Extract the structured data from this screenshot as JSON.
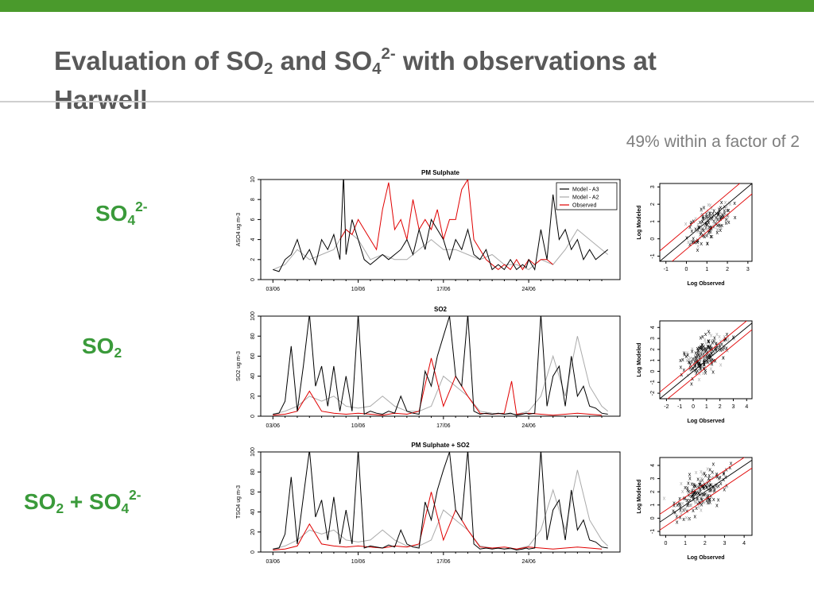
{
  "slide": {
    "title_prefix": "Evaluation of SO",
    "title_sub1": "2",
    "title_mid": " and SO",
    "title_sub2": "4",
    "title_sup": "2-",
    "title_suffix": " with observations at",
    "title_line2": "Harwell",
    "subtitle": "49% within a factor of 2",
    "row_labels": {
      "r1": {
        "base": "SO",
        "sub": "4",
        "sup": "2-"
      },
      "r2": {
        "base": "SO",
        "sub": "2"
      },
      "r3": {
        "base1": "SO",
        "sub1": "2",
        "plus": " + SO",
        "sub2": "4",
        "sup": "2-"
      }
    },
    "colors": {
      "accent_bar": "#4a9a2c",
      "label_green": "#3a9a3a",
      "model_a3": "#000000",
      "model_a2": "#aaaaaa",
      "observed": "#e00000"
    }
  },
  "chart_data": [
    {
      "type": "line",
      "title": "PM Sulphate",
      "ylabel": "ASO4 ug m-3",
      "xlabel": "",
      "ylim": [
        0,
        10
      ],
      "yticks": [
        0,
        2,
        4,
        6,
        8,
        10
      ],
      "x_tick_labels": [
        "03/06",
        "10/06",
        "17/06",
        "24/06"
      ],
      "x_tick_days": [
        0,
        7,
        14,
        21
      ],
      "x_range_days": [
        -1,
        28.5
      ],
      "legend": {
        "position": "top-right",
        "entries": [
          "Model - A3",
          "Model - A2",
          "Observed"
        ]
      },
      "series": [
        {
          "name": "Model - A3",
          "color": "#000000",
          "x": [
            0,
            0.5,
            1,
            1.5,
            2,
            2.5,
            3,
            3.5,
            4,
            4.5,
            5,
            5.5,
            5.8,
            6,
            6.5,
            7,
            7.5,
            8,
            8.5,
            9,
            9.5,
            10,
            10.5,
            11,
            11.5,
            12,
            12.5,
            13,
            13.5,
            14,
            14.5,
            15,
            15.5,
            16,
            16.5,
            17,
            17.5,
            18,
            18.5,
            19,
            19.5,
            20,
            20.5,
            20.8,
            21,
            21.5,
            22,
            22.5,
            23,
            23.5,
            24,
            24.5,
            25,
            25.5,
            26,
            26.5,
            27,
            27.5
          ],
          "y": [
            1,
            0.8,
            2,
            2.5,
            4,
            2,
            3,
            1.5,
            4,
            3,
            4.5,
            2,
            10.5,
            2.5,
            6,
            4,
            2,
            1.5,
            2,
            2.5,
            2,
            2.5,
            3,
            4,
            2.5,
            5,
            3,
            6,
            5,
            4,
            2,
            4,
            3,
            5,
            2.5,
            2,
            3,
            1,
            1.5,
            1,
            2,
            1,
            1.5,
            1.2,
            2,
            1,
            5,
            2,
            8.5,
            4,
            5,
            3,
            4,
            2,
            3,
            2,
            2.5,
            3
          ]
        },
        {
          "name": "Model - A2",
          "color": "#aaaaaa",
          "x": [
            0,
            1,
            2,
            3,
            4,
            5,
            6,
            7,
            8,
            9,
            10,
            11,
            12,
            13,
            14,
            15,
            16,
            17,
            18,
            19,
            20,
            21,
            22,
            23,
            24,
            25,
            26,
            27,
            27.5
          ],
          "y": [
            1,
            1.5,
            3,
            2,
            2.5,
            3,
            5,
            4,
            2,
            2.5,
            2,
            2,
            3,
            4,
            3,
            3,
            2.5,
            2,
            2.5,
            1.5,
            1.5,
            1,
            2,
            1.5,
            3,
            5,
            4,
            3,
            2.5
          ]
        },
        {
          "name": "Observed",
          "color": "#e00000",
          "x": [
            5.5,
            6,
            6.5,
            7,
            7.5,
            8,
            8.5,
            9,
            9.5,
            10,
            10.5,
            11,
            11.5,
            12,
            12.5,
            13,
            13.5,
            14,
            14.5,
            15,
            15.5,
            16,
            16.5,
            17.5,
            18,
            18.5,
            19,
            19.5,
            20,
            20.5,
            21,
            21.5,
            22,
            22.5,
            23
          ],
          "y": [
            4,
            5,
            4.5,
            6,
            5,
            4,
            3,
            7,
            9.7,
            5,
            6,
            4,
            8,
            5,
            6,
            5,
            7,
            4,
            6,
            6,
            9,
            10,
            4,
            2,
            1.5,
            1,
            1.5,
            1,
            2,
            1,
            2,
            1.5,
            2,
            2,
            1.5
          ]
        }
      ]
    },
    {
      "type": "line",
      "title": "SO2",
      "ylabel": "SO2 ug m-3",
      "xlabel": "",
      "ylim": [
        0,
        100
      ],
      "yticks": [
        0,
        20,
        40,
        60,
        80,
        100
      ],
      "x_tick_labels": [
        "03/06",
        "10/06",
        "17/06",
        "24/06"
      ],
      "x_tick_days": [
        0,
        7,
        14,
        21
      ],
      "x_range_days": [
        -1,
        28.5
      ],
      "series": [
        {
          "name": "Model - A3",
          "color": "#000000",
          "x": [
            0,
            0.5,
            1,
            1.5,
            2,
            2.5,
            3,
            3.5,
            4,
            4.5,
            5,
            5.5,
            6,
            6.5,
            7,
            7.5,
            8,
            8.5,
            9,
            9.5,
            10,
            10.5,
            11,
            11.5,
            12,
            12.5,
            13,
            13.5,
            14,
            14.5,
            15,
            15.5,
            16,
            16.5,
            17,
            17.5,
            18,
            18.5,
            19,
            19.5,
            20,
            20.5,
            20.8,
            21,
            21.5,
            22,
            22.5,
            23,
            23.5,
            24,
            24.5,
            25,
            25.5,
            26,
            26.5,
            27,
            27.5
          ],
          "y": [
            2,
            3,
            15,
            70,
            5,
            50,
            102,
            30,
            50,
            10,
            50,
            5,
            40,
            5,
            102,
            2,
            5,
            3,
            2,
            5,
            3,
            20,
            5,
            3,
            2,
            45,
            30,
            60,
            80,
            100,
            40,
            30,
            102,
            5,
            2,
            3,
            2,
            3,
            2,
            3,
            1,
            2,
            3,
            2,
            3,
            102,
            10,
            40,
            50,
            10,
            60,
            20,
            30,
            10,
            8,
            3,
            2
          ]
        },
        {
          "name": "Model - A2",
          "color": "#aaaaaa",
          "x": [
            0,
            1,
            2,
            3,
            4,
            5,
            6,
            7,
            8,
            9,
            10,
            11,
            12,
            13,
            14,
            15,
            16,
            17,
            18,
            19,
            20,
            21,
            22,
            23,
            24,
            25,
            26,
            27,
            27.5
          ],
          "y": [
            2,
            5,
            10,
            20,
            15,
            20,
            10,
            8,
            10,
            20,
            10,
            5,
            5,
            10,
            40,
            30,
            20,
            5,
            3,
            2,
            2,
            5,
            20,
            60,
            20,
            80,
            30,
            10,
            5
          ]
        },
        {
          "name": "Observed",
          "color": "#e00000",
          "x": [
            0,
            1,
            2,
            3,
            4,
            5,
            6,
            7,
            8,
            9,
            10,
            11,
            12,
            13,
            14,
            15,
            16,
            17,
            18,
            19,
            19.6,
            20,
            21,
            22,
            23,
            24,
            25,
            26,
            27
          ],
          "y": [
            1,
            2,
            5,
            25,
            5,
            3,
            2,
            3,
            2,
            1,
            3,
            2,
            5,
            58,
            10,
            40,
            20,
            3,
            2,
            3,
            35,
            2,
            3,
            2,
            1,
            2,
            3,
            2,
            1
          ]
        }
      ]
    },
    {
      "type": "line",
      "title": "PM Sulphate + SO2",
      "ylabel": "TSO4 ug m-3",
      "xlabel": "",
      "ylim": [
        0,
        100
      ],
      "yticks": [
        0,
        20,
        40,
        60,
        80,
        100
      ],
      "x_tick_labels": [
        "03/06",
        "10/06",
        "17/06",
        "24/06"
      ],
      "x_tick_days": [
        0,
        7,
        14,
        21
      ],
      "x_range_days": [
        -1,
        28.5
      ],
      "series": [
        {
          "name": "Model - A3",
          "color": "#000000",
          "x": [
            0,
            0.5,
            1,
            1.5,
            2,
            2.5,
            3,
            3.5,
            4,
            4.5,
            5,
            5.5,
            6,
            6.5,
            7,
            7.5,
            8,
            8.5,
            9,
            9.5,
            10,
            10.5,
            11,
            11.5,
            12,
            12.5,
            13,
            13.5,
            14,
            14.5,
            15,
            15.5,
            16,
            16.5,
            17,
            17.5,
            18,
            18.5,
            19,
            19.5,
            20,
            20.5,
            20.8,
            21,
            21.5,
            22,
            22.5,
            23,
            23.5,
            24,
            24.5,
            25,
            25.5,
            26,
            26.5,
            27,
            27.5
          ],
          "y": [
            3,
            4,
            18,
            75,
            8,
            55,
            102,
            35,
            52,
            12,
            55,
            8,
            42,
            8,
            102,
            4,
            6,
            5,
            4,
            7,
            5,
            22,
            8,
            5,
            4,
            50,
            32,
            62,
            82,
            100,
            42,
            32,
            102,
            8,
            3,
            4,
            3,
            4,
            3,
            4,
            2,
            3,
            4,
            3,
            4,
            102,
            12,
            42,
            52,
            12,
            62,
            22,
            32,
            12,
            10,
            5,
            4
          ]
        },
        {
          "name": "Model - A2",
          "color": "#aaaaaa",
          "x": [
            0,
            1,
            2,
            3,
            4,
            5,
            6,
            7,
            8,
            9,
            10,
            11,
            12,
            13,
            14,
            15,
            16,
            17,
            18,
            19,
            20,
            21,
            22,
            23,
            24,
            25,
            26,
            27,
            27.5
          ],
          "y": [
            3,
            6,
            12,
            22,
            18,
            22,
            12,
            10,
            12,
            22,
            12,
            6,
            6,
            12,
            42,
            32,
            22,
            6,
            4,
            3,
            3,
            6,
            22,
            62,
            22,
            82,
            32,
            12,
            6
          ]
        },
        {
          "name": "Observed",
          "color": "#e00000",
          "x": [
            0,
            1,
            2,
            3,
            4,
            5,
            6,
            7,
            8,
            9,
            10,
            11,
            12,
            13,
            14,
            15,
            16,
            17,
            18,
            19,
            20,
            21,
            22,
            23,
            24,
            25,
            26,
            27
          ],
          "y": [
            2,
            3,
            6,
            28,
            8,
            6,
            5,
            6,
            5,
            4,
            6,
            5,
            8,
            60,
            12,
            42,
            22,
            5,
            4,
            5,
            3,
            5,
            4,
            3,
            4,
            5,
            4,
            3
          ]
        }
      ]
    },
    {
      "type": "scatter",
      "xlabel": "Log Observed",
      "ylabel": "Log Modeled",
      "xlim": [
        -1.3,
        3.2
      ],
      "ylim": [
        -1.3,
        3.2
      ],
      "xticks": [
        -1,
        0,
        1,
        2,
        3
      ],
      "yticks": [
        -1,
        0,
        1,
        2,
        3
      ],
      "points_center": [
        1.2,
        1.0
      ],
      "points_spread": [
        0.7,
        0.8
      ],
      "n_points": 170
    },
    {
      "type": "scatter",
      "xlabel": "Log Observed",
      "ylabel": "Log Modeled",
      "xlim": [
        -2.5,
        4.4
      ],
      "ylim": [
        -2.5,
        4.6
      ],
      "xticks": [
        -2,
        -1,
        0,
        1,
        2,
        3,
        4
      ],
      "yticks": [
        -2,
        -1,
        0,
        1,
        2,
        3,
        4
      ],
      "points_center": [
        0.9,
        1.6
      ],
      "points_spread": [
        1.1,
        1.3
      ],
      "n_points": 220
    },
    {
      "type": "scatter",
      "xlabel": "Log Observed",
      "ylabel": "Log Modeled",
      "xlim": [
        -0.3,
        4.4
      ],
      "ylim": [
        -1.3,
        4.6
      ],
      "xticks": [
        0,
        1,
        2,
        3,
        4
      ],
      "yticks": [
        -1,
        0,
        1,
        2,
        3,
        4
      ],
      "points_center": [
        1.7,
        2.0
      ],
      "points_spread": [
        0.9,
        1.2
      ],
      "n_points": 200
    }
  ]
}
